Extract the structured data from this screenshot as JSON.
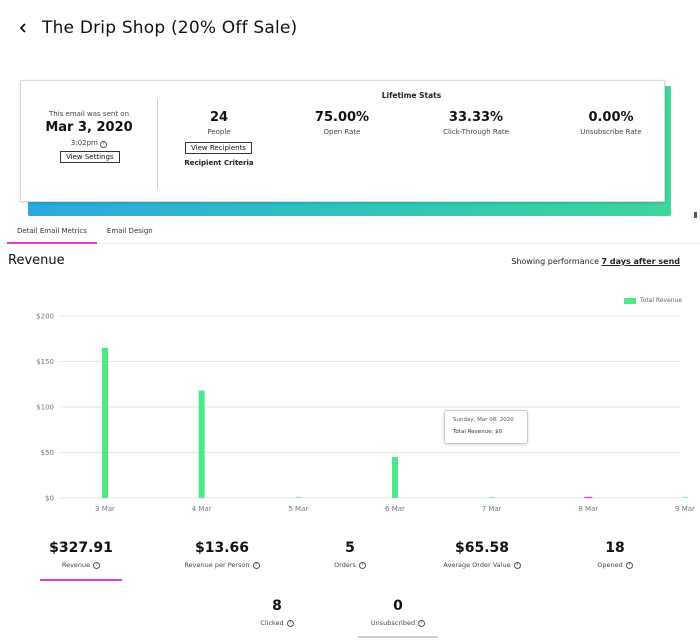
{
  "header": {
    "title": "The Drip Shop (20% Off Sale)"
  },
  "sent": {
    "label": "This email was sent on",
    "date": "Mar 3, 2020",
    "time": "3:02pm",
    "view_settings_label": "View Settings"
  },
  "lifetime": {
    "title": "Lifetime Stats",
    "stats": [
      {
        "value": "24",
        "label": "People"
      },
      {
        "value": "75.00%",
        "label": "Open Rate"
      },
      {
        "value": "33.33%",
        "label": "Click-Through Rate"
      },
      {
        "value": "0.00%",
        "label": "Unsubscribe Rate"
      }
    ],
    "view_recipients_label": "View Recipients",
    "recipient_criteria_label": "Recipient Criteria"
  },
  "tabs": [
    {
      "label": "Detail Email Metrics",
      "active": true
    },
    {
      "label": "Email Design",
      "active": false
    }
  ],
  "section": {
    "title": "Revenue",
    "performance_prefix": "Showing performance",
    "performance_link": "7 days after send"
  },
  "colors": {
    "bar": "#4ee88a",
    "accent": "#e23ad6",
    "grid": "#e6e6e6"
  },
  "chart_data": {
    "type": "bar",
    "categories": [
      "3 Mar",
      "4 Mar",
      "5 Mar",
      "6 Mar",
      "7 Mar",
      "8 Mar",
      "9 Mar"
    ],
    "bar_values": [
      165,
      118,
      0,
      45,
      0,
      0,
      0
    ],
    "bar_labels": [
      "",
      "",
      "",
      "",
      "",
      "",
      ""
    ],
    "series": [
      {
        "name": "Total Revenue",
        "values": [
          165,
          118,
          0,
          45,
          0,
          0,
          0
        ]
      }
    ],
    "y_ticks": [
      "$0",
      "$50",
      "$100",
      "$150",
      "$200"
    ],
    "y_tick_values": [
      0,
      50,
      100,
      150,
      200
    ],
    "ylim": [
      0,
      200
    ],
    "grid": true,
    "legend": "top-right",
    "highlighted_category": "8 Mar"
  },
  "tooltip": {
    "date": "Sunday, Mar 08, 2020",
    "value": "Total Revenue: $0"
  },
  "metrics": [
    {
      "value": "$327.91",
      "label": "Revenue",
      "active": true
    },
    {
      "value": "$13.66",
      "label": "Revenue per Person"
    },
    {
      "value": "5",
      "label": "Orders"
    },
    {
      "value": "$65.58",
      "label": "Average Order Value"
    },
    {
      "value": "18",
      "label": "Opened"
    },
    {
      "value": "8",
      "label": "Clicked"
    },
    {
      "value": "0",
      "label": "Unsubscribed"
    }
  ],
  "help_icon": "?"
}
